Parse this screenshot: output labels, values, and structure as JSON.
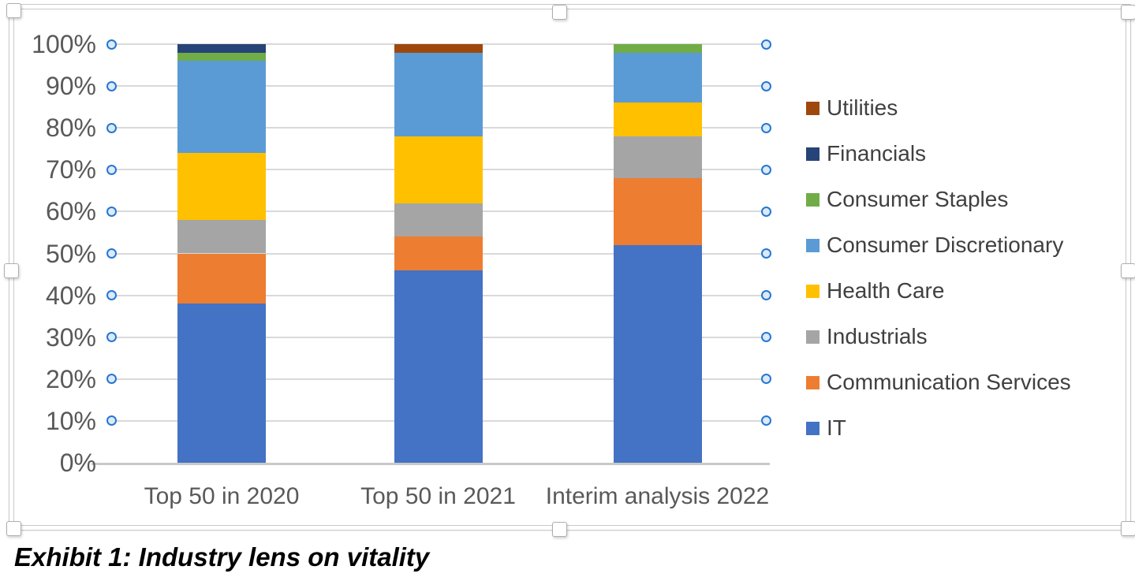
{
  "caption": "Exhibit 1: Industry lens on vitality",
  "chart_data": {
    "type": "bar",
    "subtype": "100-percent-stacked-column",
    "title": "",
    "categories": [
      "Top 50 in 2020",
      "Top 50 in 2021",
      "Interim analysis 2022"
    ],
    "series": [
      {
        "name": "IT",
        "color": "#4472C4",
        "values": [
          38,
          46,
          52
        ]
      },
      {
        "name": "Communication Services",
        "color": "#ED7D31",
        "values": [
          12,
          8,
          16
        ]
      },
      {
        "name": "Industrials",
        "color": "#A5A5A5",
        "values": [
          8,
          8,
          10
        ]
      },
      {
        "name": "Health Care",
        "color": "#FFC000",
        "values": [
          16,
          16,
          8
        ]
      },
      {
        "name": "Consumer Discretionary",
        "color": "#5B9BD5",
        "values": [
          22,
          20,
          12
        ]
      },
      {
        "name": "Consumer Staples",
        "color": "#70AD47",
        "values": [
          2,
          0,
          2
        ]
      },
      {
        "name": "Financials",
        "color": "#264478",
        "values": [
          2,
          0,
          0
        ]
      },
      {
        "name": "Utilities",
        "color": "#9E480E",
        "values": [
          0,
          2,
          0
        ]
      }
    ],
    "stack_note": "first series listed is at the bottom of each column; all columns sum to 100%",
    "legend_order": [
      "Utilities",
      "Financials",
      "Consumer Staples",
      "Consumer Discretionary",
      "Health Care",
      "Industrials",
      "Communication Services",
      "IT"
    ],
    "legend_position": "right",
    "y_ticks": [
      "100%",
      "90%",
      "80%",
      "70%",
      "60%",
      "50%",
      "40%",
      "30%",
      "20%",
      "10%",
      "0%"
    ],
    "ylim": [
      0,
      100
    ],
    "grid": true
  },
  "colors": {
    "gridline": "#D9D9D9",
    "axis_line": "#C9C9C9",
    "tick_label": "#595959",
    "legend_label": "#404040",
    "selection_frame": "#C9C9C9",
    "resize_handle_border": "#AEAEAE",
    "gridline_handle_ring": "#2577D2",
    "gridline_handle_fill": "#DCEAF9"
  }
}
